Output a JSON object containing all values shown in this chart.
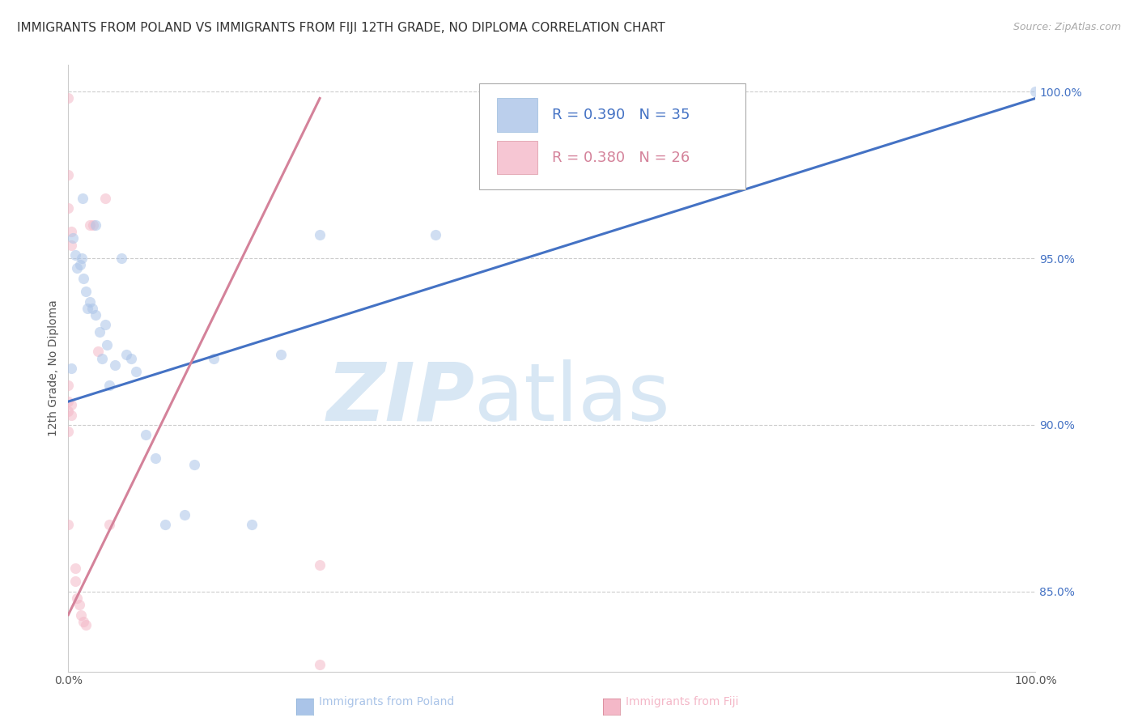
{
  "title": "IMMIGRANTS FROM POLAND VS IMMIGRANTS FROM FIJI 12TH GRADE, NO DIPLOMA CORRELATION CHART",
  "source": "Source: ZipAtlas.com",
  "ylabel": "12th Grade, No Diploma",
  "ytick_values": [
    0.85,
    0.9,
    0.95,
    1.0
  ],
  "xlim": [
    0.0,
    1.0
  ],
  "ylim": [
    0.826,
    1.008
  ],
  "background_color": "#ffffff",
  "grid_color": "#cccccc",
  "watermark_zip": "ZIP",
  "watermark_atlas": "atlas",
  "legend_R_poland": "R = 0.390",
  "legend_N_poland": "N = 35",
  "legend_R_fiji": "R = 0.380",
  "legend_N_fiji": "N = 26",
  "poland_color": "#aac4e8",
  "fiji_color": "#f4b8c8",
  "poland_line_color": "#4472c4",
  "fiji_line_color": "#d4829a",
  "poland_scatter_x": [
    0.003,
    0.015,
    0.028,
    0.005,
    0.007,
    0.009,
    0.012,
    0.014,
    0.016,
    0.018,
    0.02,
    0.022,
    0.025,
    0.028,
    0.032,
    0.035,
    0.038,
    0.04,
    0.042,
    0.048,
    0.055,
    0.06,
    0.065,
    0.07,
    0.08,
    0.09,
    0.1,
    0.12,
    0.13,
    0.15,
    0.19,
    0.22,
    0.26,
    0.38,
    1.0
  ],
  "poland_scatter_y": [
    0.917,
    0.968,
    0.96,
    0.956,
    0.951,
    0.947,
    0.948,
    0.95,
    0.944,
    0.94,
    0.935,
    0.937,
    0.935,
    0.933,
    0.928,
    0.92,
    0.93,
    0.924,
    0.912,
    0.918,
    0.95,
    0.921,
    0.92,
    0.916,
    0.897,
    0.89,
    0.87,
    0.873,
    0.888,
    0.92,
    0.87,
    0.921,
    0.957,
    0.957,
    1.0
  ],
  "fiji_scatter_x": [
    0.0,
    0.0,
    0.0,
    0.0,
    0.0,
    0.0,
    0.0,
    0.0,
    0.003,
    0.003,
    0.003,
    0.003,
    0.007,
    0.007,
    0.009,
    0.011,
    0.013,
    0.016,
    0.018,
    0.022,
    0.026,
    0.031,
    0.038,
    0.042,
    0.26,
    0.26
  ],
  "fiji_scatter_y": [
    0.998,
    0.975,
    0.965,
    0.912,
    0.907,
    0.904,
    0.898,
    0.87,
    0.958,
    0.954,
    0.906,
    0.903,
    0.857,
    0.853,
    0.848,
    0.846,
    0.843,
    0.841,
    0.84,
    0.96,
    0.96,
    0.922,
    0.968,
    0.87,
    0.858,
    0.828
  ],
  "poland_trend_x": [
    0.0,
    1.0
  ],
  "poland_trend_y": [
    0.907,
    0.998
  ],
  "fiji_trend_x": [
    0.0,
    0.26
  ],
  "fiji_trend_y": [
    0.843,
    0.998
  ],
  "title_fontsize": 11,
  "axis_label_fontsize": 10,
  "tick_fontsize": 10,
  "legend_fontsize": 13,
  "marker_size": 90,
  "marker_alpha": 0.55,
  "bottom_legend_poland": "Immigrants from Poland",
  "bottom_legend_fiji": "Immigrants from Fiji"
}
